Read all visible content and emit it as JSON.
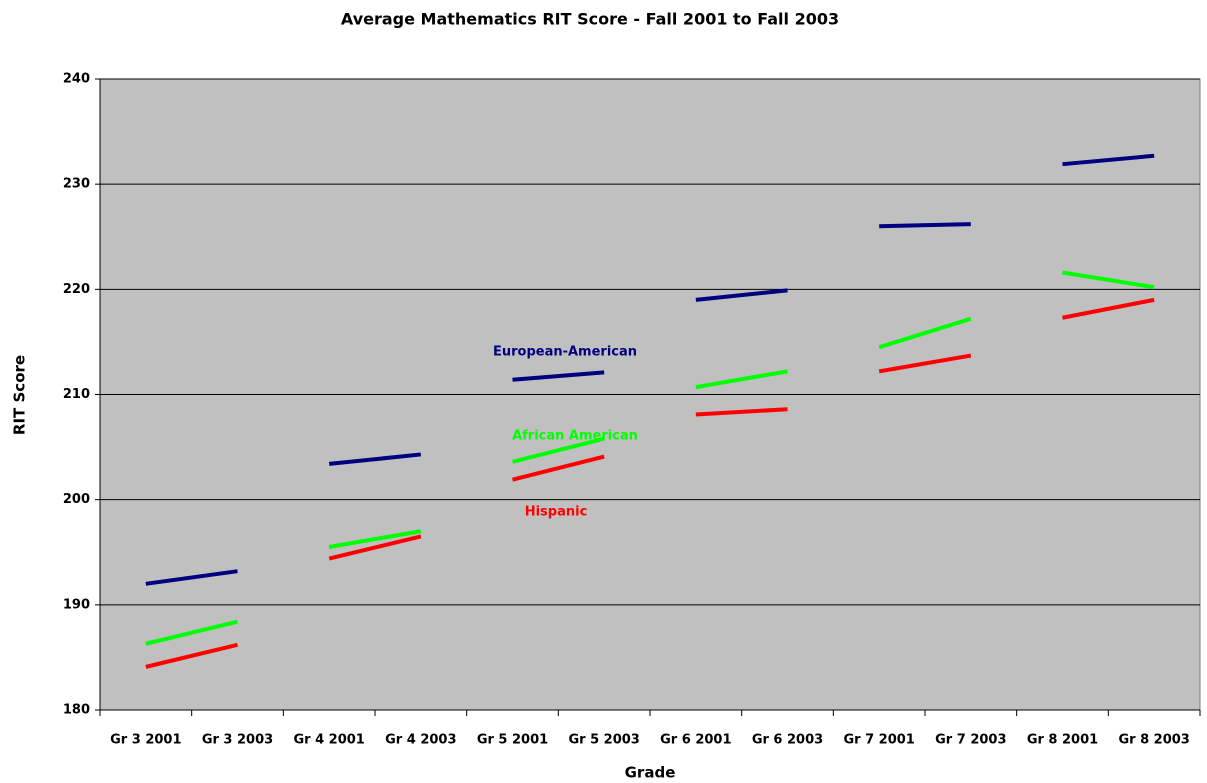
{
  "chart_data": {
    "type": "line",
    "title": "Average Mathematics RIT Score - Fall 2001 to Fall 2003",
    "x_label": "Grade",
    "y_label": "RIT Score",
    "categories": [
      "Gr 3 2001",
      "Gr 3 2003",
      "Gr 4 2001",
      "Gr 4 2003",
      "Gr 5 2001",
      "Gr 5 2003",
      "Gr 6 2001",
      "Gr 6 2003",
      "Gr 7 2001",
      "Gr 7 2003",
      "Gr 8 2001",
      "Gr 8 2003"
    ],
    "series": [
      {
        "name": "European-American",
        "color": "#000080",
        "values": [
          192.0,
          193.2,
          203.4,
          204.3,
          211.4,
          212.1,
          219.0,
          219.9,
          226.0,
          226.2,
          231.9,
          232.7
        ]
      },
      {
        "name": "African American",
        "color": "#00ff00",
        "values": [
          186.3,
          188.4,
          195.5,
          197.0,
          203.6,
          205.8,
          210.7,
          212.2,
          214.5,
          217.2,
          221.6,
          220.2
        ]
      },
      {
        "name": "Hispanic",
        "color": "#ff0000",
        "values": [
          184.1,
          186.2,
          194.4,
          196.5,
          201.9,
          204.1,
          208.1,
          208.6,
          212.2,
          213.7,
          217.3,
          219.0
        ]
      }
    ],
    "ylim": [
      180,
      240
    ],
    "yticks": [
      180,
      190,
      200,
      210,
      220,
      230,
      240
    ],
    "grid": true
  }
}
